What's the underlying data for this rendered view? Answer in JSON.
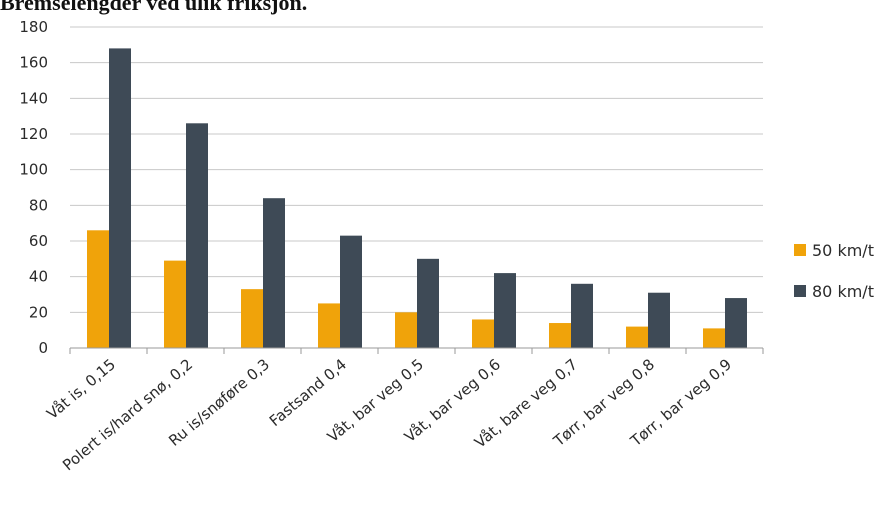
{
  "chart_data": {
    "type": "bar",
    "title": "Bremselengder ved ulik friksjon.",
    "categories": [
      "Våt is, 0,15",
      "Polert is/hard snø, 0,2",
      "Ru is/snøføre 0,3",
      "Fastsand 0,4",
      "Våt, bar veg 0,5",
      "Våt, bar veg 0,6",
      "Våt, bare veg 0,7",
      "Tørr, bar veg 0,8",
      "Tørr, bar veg 0,9"
    ],
    "series": [
      {
        "name": "50 km/t",
        "color": "#f0a30a",
        "values": [
          66,
          49,
          33,
          25,
          20,
          16,
          14,
          12,
          11
        ]
      },
      {
        "name": "80 km/t",
        "color": "#3e4a56",
        "values": [
          168,
          126,
          84,
          63,
          50,
          42,
          36,
          31,
          28
        ]
      }
    ],
    "ylim": [
      0,
      180
    ],
    "yticks": [
      0,
      20,
      40,
      60,
      80,
      100,
      120,
      140,
      160,
      180
    ],
    "grid": true,
    "legend": "right"
  }
}
